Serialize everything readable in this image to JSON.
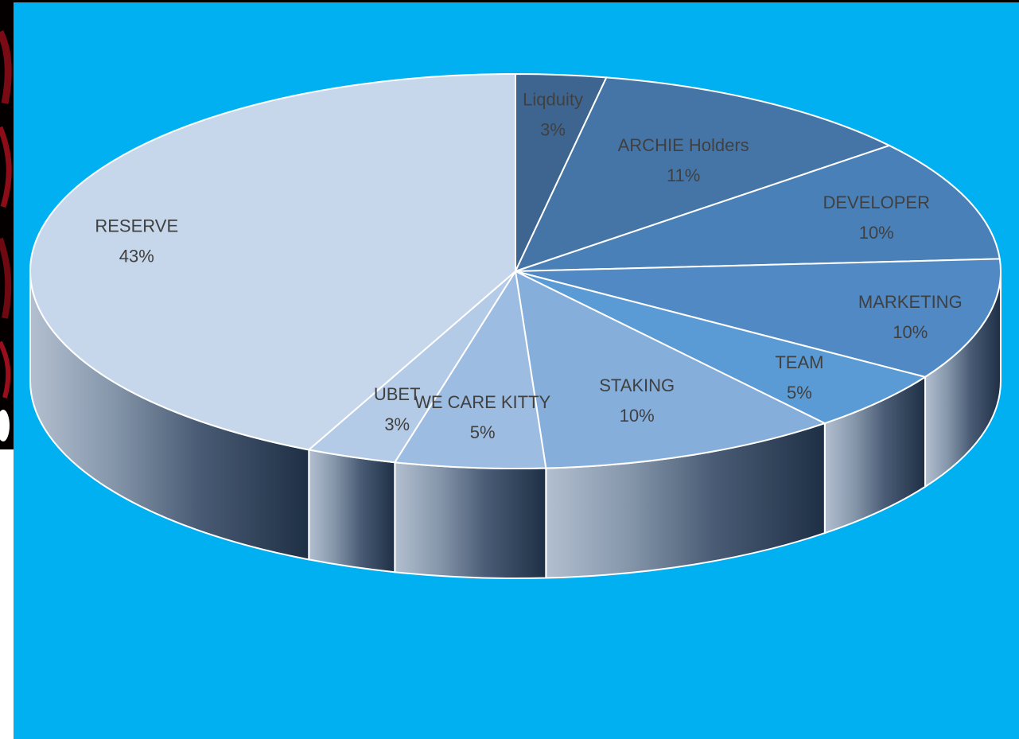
{
  "chart_data": {
    "type": "pie",
    "style": "3d",
    "title": "",
    "legend": "none",
    "categories": [
      "Liqduity",
      "ARCHIE Holders",
      "DEVELOPER",
      "MARKETING",
      "TEAM",
      "STAKING",
      "WE CARE KITTY",
      "UBET",
      "RESERVE"
    ],
    "values": [
      3,
      11,
      10,
      10,
      5,
      10,
      5,
      3,
      43
    ],
    "labels": [
      "3%",
      "11%",
      "10%",
      "10%",
      "5%",
      "10%",
      "5%",
      "3%",
      "43%"
    ],
    "colors": [
      "#3e6590",
      "#4575a6",
      "#4a80b8",
      "#5189c5",
      "#5b9bd5",
      "#86aedb",
      "#9dbce1",
      "#b4cbe7",
      "#c6d7ec"
    ],
    "background": "#00b0f0"
  }
}
